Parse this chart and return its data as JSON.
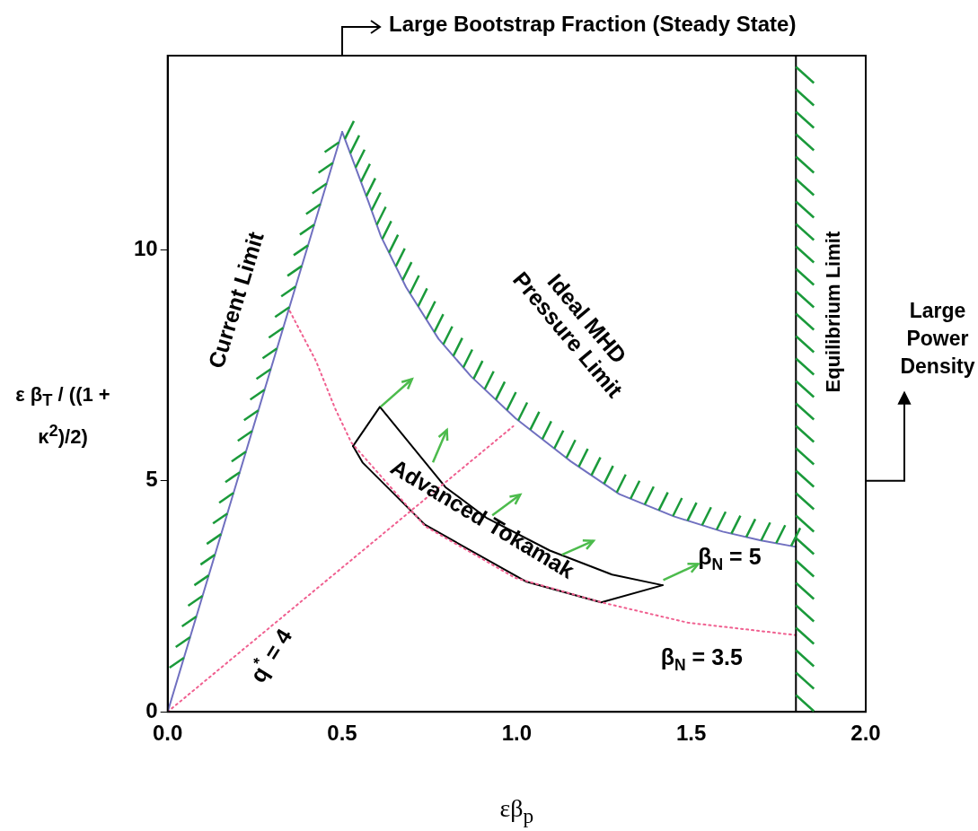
{
  "chart_data": {
    "type": "line",
    "xlabel": "εβ$_{p}$",
    "ylabel": "ε β$_{T}$ / ((1 + κ$^{2}$)/2)",
    "xlim": [
      0,
      2.0
    ],
    "ylim": [
      0,
      14.2
    ],
    "xticks": [
      {
        "value": 0,
        "label": "0.0"
      },
      0.5,
      {
        "value": 1,
        "label": "1.0"
      },
      1.5,
      {
        "value": 2,
        "label": "2.0"
      }
    ],
    "yticks": [
      0,
      5,
      10
    ],
    "grid": false,
    "legend": false,
    "marker": "none",
    "series": [
      {
        "color": "#7070c0",
        "line_style": "solid",
        "x": [
          0,
          0.5
        ],
        "values": [
          0,
          12.55
        ]
      },
      {
        "color": "#7070c0",
        "line_style": "solid",
        "x": [
          0.5,
          0.575,
          0.611,
          0.683,
          0.776,
          0.869,
          0.997,
          1.155,
          1.294,
          1.45,
          1.59,
          1.7,
          1.8
        ],
        "values": [
          12.55,
          11.04,
          10.29,
          9.19,
          8.07,
          7.26,
          6.35,
          5.42,
          4.71,
          4.23,
          3.9,
          3.71,
          3.57
        ]
      },
      {
        "color": "#f06090",
        "line_style": "dotted",
        "x": [
          0.35,
          0.425,
          0.48,
          0.526,
          0.737,
          0.995,
          1.242,
          1.49,
          1.8
        ],
        "values": [
          8.67,
          7.59,
          6.56,
          5.83,
          4.02,
          2.9,
          2.37,
          1.93,
          1.66
        ]
      },
      {
        "color": "#f06090",
        "line_style": "dotted",
        "x": [
          0,
          0.99
        ],
        "values": [
          0,
          6.18
        ]
      },
      {
        "color": "#000000",
        "line_style": "solid",
        "x": [
          0.531,
          0.559,
          0.737,
          1.026,
          1.242,
          1.418
        ],
        "values": [
          5.75,
          5.39,
          4.05,
          2.82,
          2.37,
          2.74
        ]
      },
      {
        "color": "#000000",
        "line_style": "solid",
        "x": [
          0.531,
          0.608,
          0.796,
          0.915,
          1.095,
          1.273,
          1.418
        ],
        "values": [
          5.75,
          6.6,
          4.86,
          4.19,
          3.49,
          2.97,
          2.74
        ]
      }
    ],
    "ref_lines": [
      {
        "axis": "x",
        "value": 1.8,
        "label": "Equilibrium Limit",
        "color": "#000000"
      }
    ],
    "annotations": [
      "Large Bootstrap Fraction (Steady State)",
      "Large Power Density",
      "Current Limit",
      {
        "text": "Ideal MHD Pressure Limit",
        "x": 1.155,
        "y": 5.42
      },
      "β$_{N}$ = 5",
      "β$_{N}$ = 3.5",
      "q$^{*}$ = 4",
      "Advanced Tokamak"
    ]
  }
}
